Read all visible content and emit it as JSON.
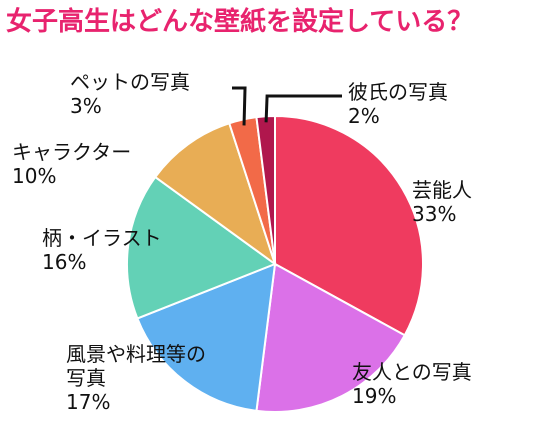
{
  "chart_data": {
    "type": "pie",
    "title": "女子高生はどんな壁紙を設定している？",
    "title_color": "#e8236e",
    "start": "12 o'clock",
    "direction": "clockwise",
    "slices": [
      {
        "label": "芸能人",
        "value": 33,
        "value_text": "33%",
        "color": "#ef3b5f"
      },
      {
        "label": "友人との写真",
        "value": 19,
        "value_text": "19%",
        "color": "#db71e8"
      },
      {
        "label": "風景や料理等の写真",
        "label_lines": [
          "風景や料理等の",
          "写真"
        ],
        "value": 17,
        "value_text": "17%",
        "color": "#5fb0f0"
      },
      {
        "label": "柄・イラスト",
        "value": 16,
        "value_text": "16%",
        "color": "#63d1b6"
      },
      {
        "label": "キャラクター",
        "value": 10,
        "value_text": "10%",
        "color": "#e8ad55"
      },
      {
        "label": "ペットの写真",
        "value": 3,
        "value_text": "3%",
        "color": "#f26a48"
      },
      {
        "label": "彼氏の写真",
        "value": 2,
        "value_text": "2%",
        "color": "#b0174d"
      }
    ]
  }
}
